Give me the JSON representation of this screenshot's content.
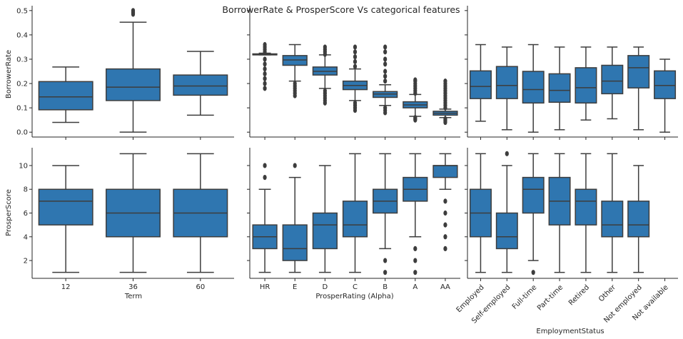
{
  "chart_data": {
    "type": "box",
    "title": "BorrowerRate & ProsperScore Vs categorical features",
    "box_color": "#2f76b0",
    "line_color": "#3d3d3d",
    "rows": [
      {
        "ylabel": "BorrowerRate",
        "ylim": [
          -0.02,
          0.52
        ],
        "yticks": [
          "0.0",
          "0.1",
          "0.2",
          "0.3",
          "0.4",
          "0.5"
        ]
      },
      {
        "ylabel": "ProsperScore",
        "ylim": [
          0.5,
          11.5
        ],
        "yticks": [
          "2",
          "4",
          "6",
          "8",
          "10"
        ]
      }
    ],
    "columns": [
      {
        "xlabel": "Term",
        "categories": [
          "12",
          "36",
          "60"
        ],
        "rotate": false
      },
      {
        "xlabel": "ProsperRating (Alpha)",
        "categories": [
          "HR",
          "E",
          "D",
          "C",
          "B",
          "A",
          "AA"
        ],
        "rotate": false
      },
      {
        "xlabel": "EmploymentStatus",
        "categories": [
          "Employed",
          "Self-employed",
          "Full-time",
          "Part-time",
          "Retired",
          "Other",
          "Not employed",
          "Not available"
        ],
        "rotate": true
      }
    ],
    "panels": [
      [
        [
          {
            "whislo": 0.04,
            "q1": 0.092,
            "med": 0.145,
            "q3": 0.208,
            "whishi": 0.268,
            "fliers": []
          },
          {
            "whislo": 0.0,
            "q1": 0.13,
            "med": 0.185,
            "q3": 0.26,
            "whishi": 0.452,
            "fliers": [
              0.485,
              0.49,
              0.495,
              0.5
            ]
          },
          {
            "whislo": 0.07,
            "q1": 0.152,
            "med": 0.19,
            "q3": 0.235,
            "whishi": 0.332,
            "fliers": []
          }
        ],
        [
          {
            "whislo": 0.318,
            "q1": 0.318,
            "med": 0.318,
            "q3": 0.322,
            "whishi": 0.325,
            "fliers": [
              0.18,
              0.2,
              0.22,
              0.24,
              0.26,
              0.28,
              0.3,
              0.33,
              0.34,
              0.35,
              0.36
            ]
          },
          {
            "whislo": 0.21,
            "q1": 0.275,
            "med": 0.297,
            "q3": 0.315,
            "whishi": 0.36,
            "fliers": [
              0.15,
              0.16,
              0.17,
              0.18,
              0.19,
              0.2
            ]
          },
          {
            "whislo": 0.18,
            "q1": 0.235,
            "med": 0.25,
            "q3": 0.268,
            "whishi": 0.318,
            "fliers": [
              0.12,
              0.13,
              0.14,
              0.15,
              0.16,
              0.17,
              0.32,
              0.33,
              0.34,
              0.35
            ]
          },
          {
            "whislo": 0.13,
            "q1": 0.175,
            "med": 0.192,
            "q3": 0.21,
            "whishi": 0.26,
            "fliers": [
              0.09,
              0.1,
              0.11,
              0.12,
              0.27,
              0.29,
              0.31,
              0.33,
              0.35
            ]
          },
          {
            "whislo": 0.11,
            "q1": 0.143,
            "med": 0.157,
            "q3": 0.167,
            "whishi": 0.195,
            "fliers": [
              0.08,
              0.09,
              0.1,
              0.21,
              0.23,
              0.25,
              0.28,
              0.3,
              0.33,
              0.35
            ]
          },
          {
            "whislo": 0.065,
            "q1": 0.1,
            "med": 0.112,
            "q3": 0.125,
            "whishi": 0.155,
            "fliers": [
              0.05,
              0.055,
              0.06,
              0.16,
              0.17,
              0.18,
              0.19,
              0.2,
              0.21,
              0.215
            ]
          },
          {
            "whislo": 0.06,
            "q1": 0.07,
            "med": 0.078,
            "q3": 0.086,
            "whishi": 0.095,
            "fliers": [
              0.04,
              0.045,
              0.05,
              0.055,
              0.1,
              0.11,
              0.12,
              0.13,
              0.14,
              0.15,
              0.16,
              0.17,
              0.18,
              0.19,
              0.2,
              0.21
            ]
          }
        ],
        [
          {
            "whislo": 0.045,
            "q1": 0.138,
            "med": 0.188,
            "q3": 0.252,
            "whishi": 0.36,
            "fliers": []
          },
          {
            "whislo": 0.01,
            "q1": 0.138,
            "med": 0.192,
            "q3": 0.27,
            "whishi": 0.35,
            "fliers": []
          },
          {
            "whislo": 0.0,
            "q1": 0.12,
            "med": 0.175,
            "q3": 0.25,
            "whishi": 0.36,
            "fliers": []
          },
          {
            "whislo": 0.01,
            "q1": 0.123,
            "med": 0.172,
            "q3": 0.24,
            "whishi": 0.35,
            "fliers": []
          },
          {
            "whislo": 0.05,
            "q1": 0.12,
            "med": 0.183,
            "q3": 0.265,
            "whishi": 0.35,
            "fliers": []
          },
          {
            "whislo": 0.055,
            "q1": 0.158,
            "med": 0.21,
            "q3": 0.275,
            "whishi": 0.35,
            "fliers": []
          },
          {
            "whislo": 0.01,
            "q1": 0.182,
            "med": 0.265,
            "q3": 0.315,
            "whishi": 0.35,
            "fliers": []
          },
          {
            "whislo": 0.0,
            "q1": 0.138,
            "med": 0.192,
            "q3": 0.252,
            "whishi": 0.3,
            "fliers": []
          }
        ]
      ],
      [
        [
          {
            "whislo": 1,
            "q1": 5,
            "med": 7,
            "q3": 8,
            "whishi": 10,
            "fliers": []
          },
          {
            "whislo": 1,
            "q1": 4,
            "med": 6,
            "q3": 8,
            "whishi": 11,
            "fliers": []
          },
          {
            "whislo": 1,
            "q1": 4,
            "med": 6,
            "q3": 8,
            "whishi": 11,
            "fliers": []
          }
        ],
        [
          {
            "whislo": 1,
            "q1": 3,
            "med": 4,
            "q3": 5,
            "whishi": 8,
            "fliers": [
              9,
              10
            ]
          },
          {
            "whislo": 1,
            "q1": 2,
            "med": 3,
            "q3": 5,
            "whishi": 9,
            "fliers": [
              10
            ]
          },
          {
            "whislo": 1,
            "q1": 3,
            "med": 5,
            "q3": 6,
            "whishi": 10,
            "fliers": []
          },
          {
            "whislo": 1,
            "q1": 4,
            "med": 5,
            "q3": 7,
            "whishi": 11,
            "fliers": []
          },
          {
            "whislo": 3,
            "q1": 6,
            "med": 7,
            "q3": 8,
            "whishi": 11,
            "fliers": [
              1,
              2
            ]
          },
          {
            "whislo": 4,
            "q1": 7,
            "med": 8,
            "q3": 9,
            "whishi": 11,
            "fliers": [
              1,
              2,
              3
            ]
          },
          {
            "whislo": 8,
            "q1": 9,
            "med": 10,
            "q3": 10,
            "whishi": 11,
            "fliers": [
              3,
              4,
              5,
              6,
              7
            ]
          }
        ],
        [
          {
            "whislo": 1,
            "q1": 4,
            "med": 6,
            "q3": 8,
            "whishi": 11,
            "fliers": []
          },
          {
            "whislo": 1,
            "q1": 3,
            "med": 4,
            "q3": 6,
            "whishi": 10,
            "fliers": [
              11
            ]
          },
          {
            "whislo": 2,
            "q1": 6,
            "med": 8,
            "q3": 9,
            "whishi": 11,
            "fliers": [
              1
            ]
          },
          {
            "whislo": 1,
            "q1": 5,
            "med": 7,
            "q3": 9,
            "whishi": 11,
            "fliers": []
          },
          {
            "whislo": 1,
            "q1": 5,
            "med": 7,
            "q3": 8,
            "whishi": 11,
            "fliers": []
          },
          {
            "whislo": 1,
            "q1": 4,
            "med": 5,
            "q3": 7,
            "whishi": 11,
            "fliers": []
          },
          {
            "whislo": 1,
            "q1": 4,
            "med": 5,
            "q3": 7,
            "whishi": 10,
            "fliers": []
          },
          null
        ]
      ]
    ]
  }
}
